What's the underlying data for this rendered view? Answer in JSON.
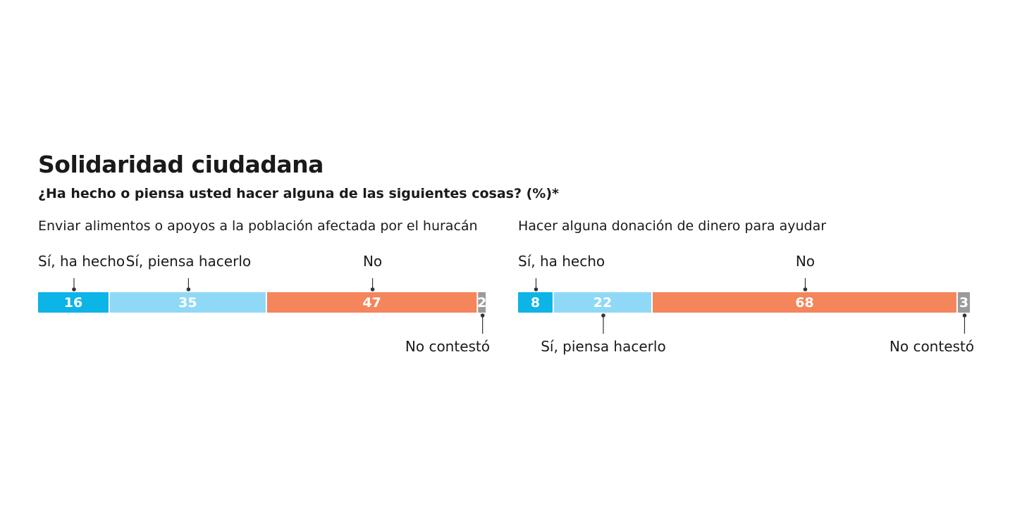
{
  "header": {
    "title": "Solidaridad ciudadana",
    "subtitle": "¿Ha hecho o piensa usted hacer alguna de las siguientes cosas? (%)*"
  },
  "chart_data": [
    {
      "type": "bar",
      "stacked": true,
      "orientation": "horizontal",
      "title": "Enviar alimentos o apoyos a la población afectada por el huracán",
      "unit": "%",
      "segments": [
        {
          "name": "Sí, ha hecho",
          "value": 16,
          "color": "#0cb4e8",
          "label_position": "above"
        },
        {
          "name": "Sí, piensa hacerlo",
          "value": 35,
          "color": "#8fd9f6",
          "label_position": "above"
        },
        {
          "name": "No",
          "value": 47,
          "color": "#f5855a",
          "label_position": "above"
        },
        {
          "name": "No contestó",
          "value": 2,
          "color": "#9b9b9b",
          "label_position": "below"
        }
      ]
    },
    {
      "type": "bar",
      "stacked": true,
      "orientation": "horizontal",
      "title": "Hacer alguna donación de dinero para ayudar",
      "unit": "%",
      "segments": [
        {
          "name": "Sí, ha hecho",
          "value": 8,
          "color": "#0cb4e8",
          "label_position": "above"
        },
        {
          "name": "Sí, piensa hacerlo",
          "value": 22,
          "color": "#8fd9f6",
          "label_position": "below"
        },
        {
          "name": "No",
          "value": 68,
          "color": "#f5855a",
          "label_position": "above"
        },
        {
          "name": "No contestó",
          "value": 3,
          "color": "#9b9b9b",
          "label_position": "below"
        }
      ]
    }
  ]
}
